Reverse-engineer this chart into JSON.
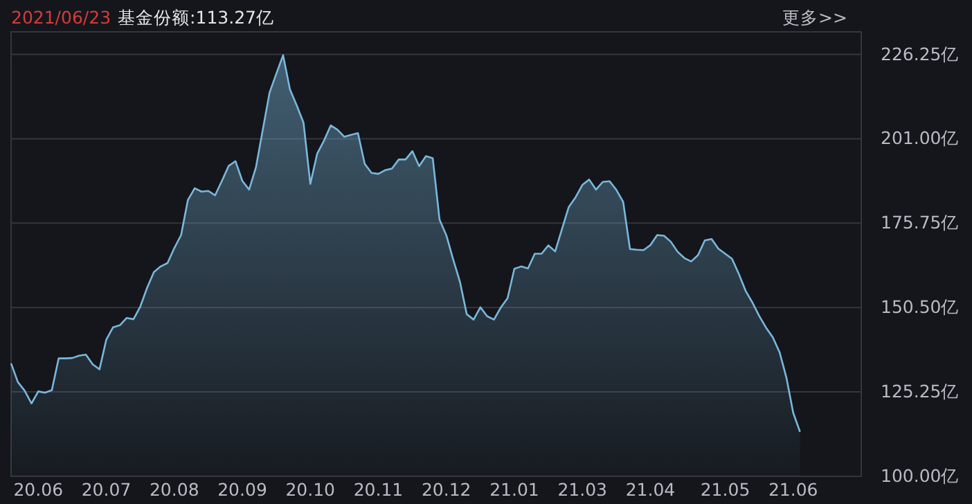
{
  "chart_data": {
    "type": "area",
    "title": "2021/06/23",
    "subtitle": "基金份额:113.27亿",
    "annotations": [
      "更多>>"
    ],
    "categories": [
      null,
      null,
      null,
      null,
      "20.06",
      null,
      null,
      null,
      null,
      null,
      null,
      null,
      null,
      null,
      "20.07",
      null,
      null,
      null,
      null,
      null,
      null,
      null,
      null,
      null,
      "20.08",
      null,
      null,
      null,
      null,
      null,
      null,
      null,
      null,
      null,
      "20.09",
      null,
      null,
      null,
      null,
      null,
      null,
      null,
      null,
      null,
      "20.10",
      null,
      null,
      null,
      null,
      null,
      null,
      null,
      null,
      null,
      "20.11",
      null,
      null,
      null,
      null,
      null,
      null,
      null,
      null,
      null,
      "20.12",
      null,
      null,
      null,
      null,
      null,
      null,
      null,
      null,
      null,
      "21.01",
      null,
      null,
      null,
      null,
      null,
      null,
      null,
      null,
      null,
      "21.03",
      null,
      null,
      null,
      null,
      null,
      null,
      null,
      null,
      null,
      "21.04",
      null,
      null,
      null,
      null,
      null,
      null,
      null,
      null,
      null,
      null,
      "21.05",
      null,
      null,
      null,
      null,
      null,
      null,
      null,
      null,
      null,
      "21.06",
      null,
      null,
      null,
      null,
      null,
      null,
      null,
      null,
      null
    ],
    "values": [
      133.8,
      128.2,
      125.6,
      121.8,
      125.4,
      125.0,
      125.8,
      135.3,
      135.3,
      135.4,
      136.1,
      136.4,
      133.5,
      132.0,
      140.9,
      144.6,
      145.2,
      147.4,
      147.0,
      150.8,
      156.4,
      161.1,
      162.8,
      163.8,
      168.3,
      172.2,
      182.7,
      186.2,
      185.2,
      185.4,
      184.1,
      188.4,
      192.9,
      194.3,
      188.4,
      185.8,
      192.4,
      203.6,
      214.8,
      220.5,
      226.0,
      215.8,
      211.0,
      205.8,
      187.5,
      196.5,
      200.4,
      205.0,
      203.7,
      201.6,
      202.2,
      202.7,
      193.5,
      190.8,
      190.5,
      191.6,
      192.1,
      194.8,
      194.8,
      197.3,
      192.8,
      195.8,
      195.2,
      176.8,
      172.1,
      164.9,
      158.2,
      148.5,
      146.9,
      150.6,
      147.9,
      146.9,
      150.5,
      153.3,
      162.1,
      162.8,
      162.2,
      166.6,
      166.6,
      169.1,
      167.3,
      174.0,
      180.6,
      183.5,
      187.2,
      188.8,
      185.8,
      188.1,
      188.3,
      185.7,
      182.1,
      168.0,
      167.8,
      167.7,
      169.2,
      172.2,
      172.0,
      170.2,
      167.2,
      165.3,
      164.3,
      166.2,
      170.6,
      171.0,
      168.1,
      166.6,
      165.1,
      160.6,
      155.5,
      152.0,
      148.0,
      144.5,
      141.6,
      137.1,
      129.5,
      119.0,
      113.3,
      null,
      null,
      null,
      null,
      null,
      null,
      null,
      null
    ],
    "color": "#7ab8dc",
    "ylim": [
      100,
      233
    ],
    "yticks": [
      {
        "value": 100,
        "label": "100.00亿"
      },
      {
        "value": 125.25,
        "label": "125.25亿"
      },
      {
        "value": 150.5,
        "label": "150.50亿"
      },
      {
        "value": 175.75,
        "label": "175.75亿"
      },
      {
        "value": 201,
        "label": "201.00亿"
      },
      {
        "value": 226.25,
        "label": "226.25亿"
      }
    ],
    "grid": "y"
  }
}
